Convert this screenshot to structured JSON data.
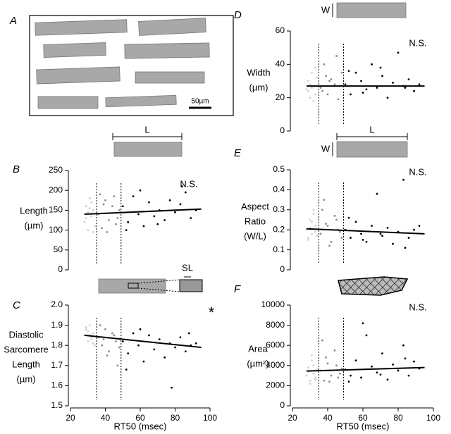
{
  "image_panel": {
    "panel": "A",
    "scale_label": "50µm"
  },
  "chart_data": [
    {
      "type": "scatter",
      "panel": "B",
      "ylabel": [
        "Length",
        "(µm)"
      ],
      "annotation": "N.S.",
      "illustration_labels": [
        "L"
      ],
      "xlim": [
        20,
        100
      ],
      "ylim": [
        0,
        250
      ],
      "yticks": [
        0,
        50,
        100,
        150,
        200,
        250
      ],
      "vlines": [
        35,
        49
      ],
      "fit": {
        "x": [
          28,
          95
        ],
        "y": [
          140,
          153
        ]
      },
      "series": [
        {
          "color": "#cfcfcf",
          "x": [
            28,
            29,
            30,
            31,
            32,
            33,
            34,
            30,
            32,
            29,
            33,
            31
          ],
          "y": [
            120,
            160,
            100,
            180,
            135,
            150,
            110,
            145,
            170,
            130,
            95,
            155
          ]
        },
        {
          "color": "#8a8a8a",
          "x": [
            36,
            38,
            40,
            42,
            44,
            46,
            48,
            37,
            41,
            45,
            47,
            39
          ],
          "y": [
            140,
            105,
            175,
            125,
            160,
            115,
            150,
            190,
            95,
            185,
            130,
            165
          ]
        },
        {
          "color": "#000000",
          "x": [
            50,
            53,
            56,
            59,
            62,
            65,
            68,
            71,
            74,
            77,
            80,
            83,
            86,
            89,
            92,
            52,
            60,
            70,
            84
          ],
          "y": [
            160,
            120,
            185,
            140,
            110,
            170,
            135,
            150,
            125,
            175,
            145,
            165,
            195,
            130,
            150,
            100,
            200,
            115,
            210
          ]
        }
      ]
    },
    {
      "type": "scatter",
      "panel": "C",
      "ylabel": [
        "Diastolic",
        "Sarcomere",
        "Length",
        "(µm)"
      ],
      "annotation": "*",
      "illustration_labels": [
        "SL"
      ],
      "xlabel": "RT50 (msec)",
      "xlim": [
        20,
        100
      ],
      "xticks": [
        20,
        40,
        60,
        80,
        100
      ],
      "ylim": [
        1.5,
        2
      ],
      "yticks": [
        1.5,
        1.6,
        1.7,
        1.8,
        1.9,
        {
          "value": 2,
          "label": "2.0"
        }
      ],
      "vlines": [
        35,
        49
      ],
      "fit": {
        "x": [
          28,
          95
        ],
        "y": [
          1.85,
          1.79
        ]
      },
      "series": [
        {
          "color": "#cfcfcf",
          "x": [
            28,
            29,
            30,
            31,
            32,
            33,
            34,
            30,
            32,
            29,
            33,
            31
          ],
          "y": [
            1.85,
            1.88,
            1.82,
            1.9,
            1.84,
            1.86,
            1.8,
            1.87,
            1.83,
            1.89,
            1.81,
            1.85
          ]
        },
        {
          "color": "#8a8a8a",
          "x": [
            36,
            38,
            40,
            42,
            44,
            46,
            48,
            37,
            41,
            45,
            47,
            39
          ],
          "y": [
            1.84,
            1.8,
            1.88,
            1.77,
            1.86,
            1.82,
            1.79,
            1.9,
            1.75,
            1.85,
            1.7,
            1.83
          ]
        },
        {
          "color": "#000000",
          "x": [
            50,
            53,
            56,
            59,
            62,
            65,
            68,
            71,
            74,
            77,
            80,
            83,
            86,
            89,
            92,
            52,
            60,
            78,
            88
          ],
          "y": [
            1.82,
            1.76,
            1.86,
            1.8,
            1.72,
            1.85,
            1.78,
            1.83,
            1.74,
            1.81,
            1.79,
            1.84,
            1.77,
            1.8,
            1.81,
            1.68,
            1.88,
            1.59,
            1.86
          ]
        }
      ]
    },
    {
      "type": "scatter",
      "panel": "D",
      "ylabel": [
        "Width",
        "(µm)"
      ],
      "annotation": "N.S.",
      "illustration_labels": [
        "W"
      ],
      "xlim": [
        20,
        100
      ],
      "ylim": [
        0,
        60
      ],
      "yticks": [
        0,
        20,
        40,
        60
      ],
      "vlines": [
        35,
        49
      ],
      "fit": {
        "x": [
          28,
          95
        ],
        "y": [
          27,
          27
        ]
      },
      "series": [
        {
          "color": "#cfcfcf",
          "x": [
            28,
            29,
            30,
            31,
            32,
            33,
            34,
            30,
            32,
            29,
            33,
            31
          ],
          "y": [
            25,
            30,
            20,
            35,
            27,
            22,
            32,
            28,
            18,
            24,
            38,
            26
          ]
        },
        {
          "color": "#8a8a8a",
          "x": [
            36,
            38,
            40,
            42,
            44,
            46,
            48,
            37,
            41,
            45,
            47,
            39
          ],
          "y": [
            26,
            40,
            22,
            31,
            28,
            19,
            35,
            24,
            30,
            45,
            27,
            33
          ]
        },
        {
          "color": "#000000",
          "x": [
            50,
            53,
            56,
            59,
            62,
            65,
            68,
            71,
            74,
            77,
            80,
            83,
            86,
            89,
            92,
            52,
            60,
            70,
            84
          ],
          "y": [
            28,
            22,
            35,
            30,
            25,
            40,
            26,
            33,
            20,
            29,
            47,
            27,
            31,
            24,
            28,
            36,
            23,
            38,
            26
          ]
        }
      ]
    },
    {
      "type": "scatter",
      "panel": "E",
      "ylabel": [
        "Aspect",
        "Ratio",
        "(W/L)"
      ],
      "annotation": "N.S.",
      "illustration_labels": [
        "L",
        "W"
      ],
      "xlim": [
        20,
        100
      ],
      "ylim": [
        0,
        0.5
      ],
      "yticks": [
        0,
        0.1,
        0.2,
        0.3,
        0.4,
        0.5
      ],
      "vlines": [
        35,
        49
      ],
      "fit": {
        "x": [
          28,
          95
        ],
        "y": [
          0.205,
          0.18
        ]
      },
      "series": [
        {
          "color": "#cfcfcf",
          "x": [
            28,
            29,
            30,
            31,
            32,
            33,
            34,
            30,
            32,
            29,
            33,
            31
          ],
          "y": [
            0.2,
            0.15,
            0.25,
            0.18,
            0.3,
            0.22,
            0.17,
            0.21,
            0.28,
            0.16,
            0.19,
            0.24
          ]
        },
        {
          "color": "#8a8a8a",
          "x": [
            36,
            38,
            40,
            42,
            44,
            46,
            48,
            37,
            41,
            45,
            47,
            39
          ],
          "y": [
            0.18,
            0.35,
            0.22,
            0.14,
            0.27,
            0.2,
            0.16,
            0.3,
            0.12,
            0.25,
            0.19,
            0.23
          ]
        },
        {
          "color": "#000000",
          "x": [
            50,
            53,
            56,
            59,
            62,
            65,
            68,
            71,
            74,
            77,
            80,
            83,
            86,
            89,
            92,
            52,
            60,
            70,
            84
          ],
          "y": [
            0.2,
            0.16,
            0.24,
            0.18,
            0.14,
            0.22,
            0.38,
            0.17,
            0.21,
            0.13,
            0.19,
            0.45,
            0.16,
            0.2,
            0.22,
            0.26,
            0.15,
            0.18,
            0.11
          ]
        }
      ]
    },
    {
      "type": "scatter",
      "panel": "F",
      "ylabel": [
        "Area",
        "(µm²)"
      ],
      "annotation": "N.S.",
      "xlabel": "RT50 (msec)",
      "xlim": [
        20,
        100
      ],
      "xticks": [
        20,
        40,
        60,
        80,
        100
      ],
      "ylim": [
        0,
        10000
      ],
      "yticks": [
        0,
        2000,
        4000,
        6000,
        8000,
        10000
      ],
      "vlines": [
        35,
        49
      ],
      "fit": {
        "x": [
          28,
          95
        ],
        "y": [
          3450,
          3800
        ]
      },
      "series": [
        {
          "color": "#cfcfcf",
          "x": [
            28,
            29,
            30,
            31,
            32,
            33,
            34,
            30,
            32,
            29,
            33,
            31
          ],
          "y": [
            3000,
            3800,
            2500,
            4500,
            3200,
            2800,
            3600,
            2200,
            4000,
            3400,
            2600,
            5000
          ]
        },
        {
          "color": "#8a8a8a",
          "x": [
            36,
            38,
            40,
            42,
            44,
            46,
            48,
            37,
            41,
            45,
            47,
            39
          ],
          "y": [
            3500,
            2500,
            4200,
            3000,
            5500,
            2800,
            3700,
            6500,
            2400,
            4000,
            3200,
            4800
          ]
        },
        {
          "color": "#000000",
          "x": [
            50,
            53,
            56,
            59,
            62,
            65,
            68,
            71,
            74,
            77,
            80,
            83,
            86,
            89,
            92,
            52,
            60,
            70,
            84
          ],
          "y": [
            3600,
            3000,
            4500,
            2800,
            7000,
            3900,
            3300,
            5200,
            2600,
            4100,
            3500,
            6000,
            3000,
            4400,
            3700,
            2400,
            8200,
            3100,
            4700
          ]
        }
      ]
    }
  ]
}
